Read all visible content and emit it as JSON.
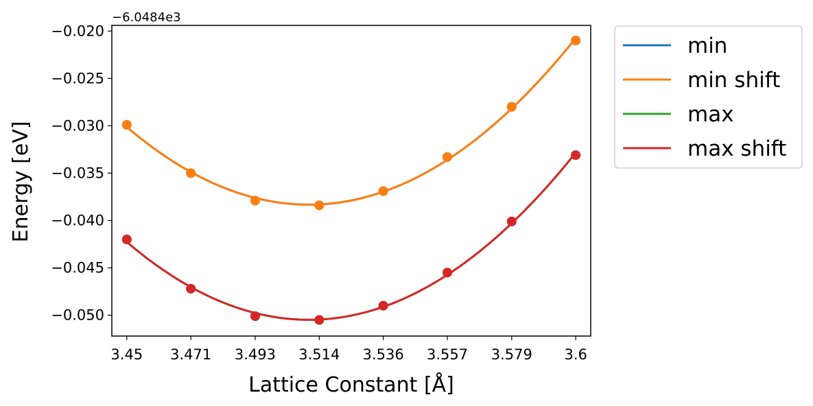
{
  "chart_data": {
    "type": "line",
    "xlabel": "Lattice Constant [Å]",
    "ylabel": "Energy [eV]",
    "y_offset_label": "−6.0484e3",
    "x_tick_labels": [
      "3.45",
      "3.471",
      "3.493",
      "3.514",
      "3.536",
      "3.557",
      "3.579",
      "3.6"
    ],
    "y_tick_labels": [
      "−0.020",
      "−0.025",
      "−0.030",
      "−0.035",
      "−0.040",
      "−0.045",
      "−0.050"
    ],
    "y_ticks": [
      -0.02,
      -0.025,
      -0.03,
      -0.035,
      -0.04,
      -0.045,
      -0.05
    ],
    "xlim": [
      3.445,
      3.605
    ],
    "ylim": [
      -0.0522,
      -0.0194
    ],
    "x": [
      3.45,
      3.4714,
      3.4929,
      3.5143,
      3.5357,
      3.5571,
      3.5786,
      3.6
    ],
    "legend_position": "outside-top-right",
    "series": [
      {
        "name": "min",
        "color": "#1f77b4",
        "y": [
          -0.0299,
          -0.035,
          -0.0379,
          -0.0384,
          -0.0369,
          -0.0333,
          -0.028,
          -0.021
        ]
      },
      {
        "name": "min shift",
        "color": "#ff7f0e",
        "y": [
          -0.0299,
          -0.035,
          -0.0379,
          -0.0384,
          -0.0369,
          -0.0333,
          -0.028,
          -0.021
        ]
      },
      {
        "name": "max",
        "color": "#2ca02c",
        "y": [
          -0.042,
          -0.0472,
          -0.0501,
          -0.0505,
          -0.049,
          -0.0455,
          -0.0401,
          -0.0331
        ]
      },
      {
        "name": "max shift",
        "color": "#d62728",
        "y": [
          -0.042,
          -0.0472,
          -0.0501,
          -0.0505,
          -0.049,
          -0.0455,
          -0.0401,
          -0.0331
        ]
      }
    ]
  }
}
